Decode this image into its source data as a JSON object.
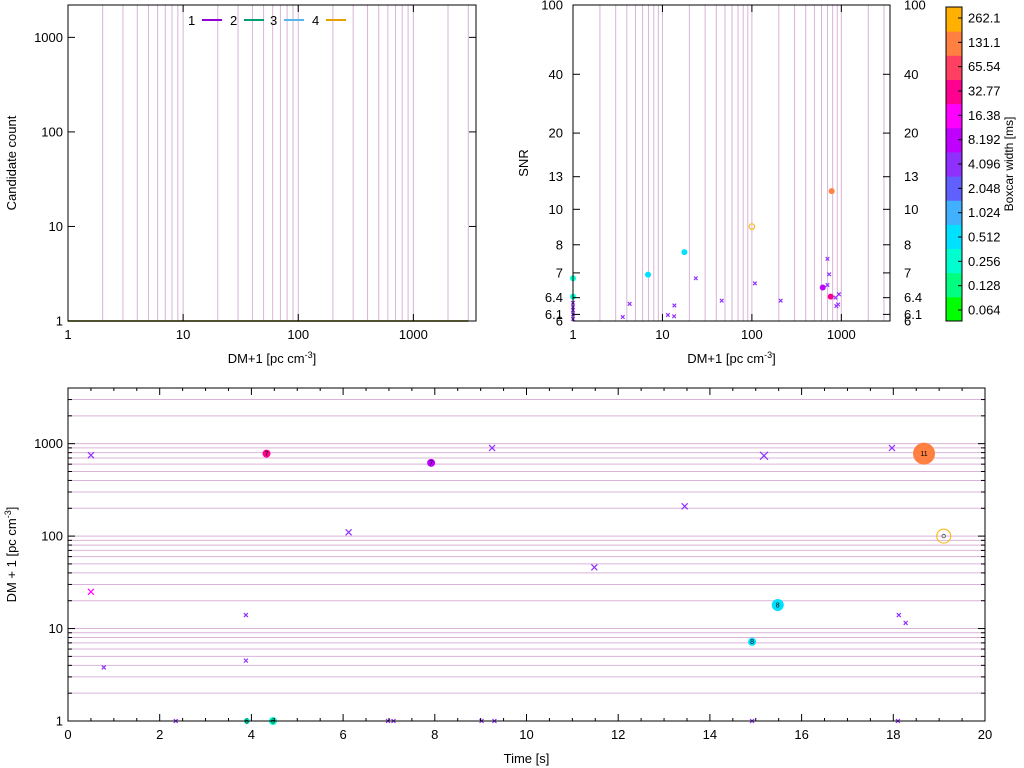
{
  "colors": {
    "grid": "#d9b3d9",
    "axis": "#000000",
    "series": [
      "#9400d3",
      "#009e73",
      "#56b4e9",
      "#e69f00"
    ],
    "colorbar_stops": [
      "#00ff00",
      "#00ff80",
      "#00ffd0",
      "#00e0ff",
      "#40b0ff",
      "#6060ff",
      "#9030ff",
      "#c000ff",
      "#ff00ff",
      "#ff0090",
      "#ff4060",
      "#ff8040",
      "#ffb000"
    ]
  },
  "chart_data": [
    {
      "id": "candidate-count",
      "type": "line",
      "xlabel": "DM+1 [pc cm",
      "xlabel_sup": "-3",
      "xlabel_tail": "]",
      "ylabel": "Candidate count",
      "xscale": "log",
      "yscale": "log",
      "xlim": [
        1,
        3500
      ],
      "ylim": [
        1,
        2200
      ],
      "xticks": [
        1,
        10,
        100,
        1000
      ],
      "xtick_labels": [
        "1",
        "10",
        "100",
        "1000"
      ],
      "yticks": [
        1,
        10,
        100,
        1000
      ],
      "ytick_labels": [
        "1",
        "10",
        "100",
        "1000"
      ],
      "legend_position": "top-center",
      "series": [
        {
          "name": "1",
          "x": [
            1,
            3000
          ],
          "y": [
            1,
            1
          ]
        },
        {
          "name": "2",
          "x": [
            1,
            3000
          ],
          "y": [
            1,
            1
          ]
        },
        {
          "name": "3",
          "x": [
            1,
            3000
          ],
          "y": [
            1,
            1
          ]
        },
        {
          "name": "4",
          "x": [
            1,
            3000
          ],
          "y": [
            1,
            1
          ]
        }
      ]
    },
    {
      "id": "snr-vs-dm",
      "type": "scatter",
      "xlabel": "DM+1 [pc cm",
      "xlabel_sup": "-3",
      "xlabel_tail": "]",
      "ylabel": "SNR",
      "xscale": "log",
      "yscale": "custom",
      "xlim": [
        1,
        3500
      ],
      "ylim": [
        6,
        100
      ],
      "xticks": [
        1,
        10,
        100,
        1000
      ],
      "xtick_labels": [
        "1",
        "10",
        "100",
        "1000"
      ],
      "yticks": [
        6,
        6.1,
        6.4,
        7,
        8,
        10,
        13,
        20,
        40,
        100
      ],
      "ytick_labels": [
        "6",
        "6.1",
        "6.4",
        "7",
        "8",
        "10",
        "13",
        "20",
        "40",
        "100"
      ],
      "points": [
        {
          "x": 1,
          "snr": 6.85,
          "w": 0.35,
          "kind": "dot"
        },
        {
          "x": 1,
          "snr": 6.42,
          "w": 0.35,
          "kind": "dot"
        },
        {
          "x": 1,
          "snr": 6.3,
          "w": 4,
          "kind": "cross"
        },
        {
          "x": 1,
          "snr": 6.22,
          "w": 4,
          "kind": "cross"
        },
        {
          "x": 1,
          "snr": 6.17,
          "w": 4,
          "kind": "cross"
        },
        {
          "x": 1,
          "snr": 6.1,
          "w": 4,
          "kind": "cross"
        },
        {
          "x": 1,
          "snr": 6.03,
          "w": 4,
          "kind": "cross"
        },
        {
          "x": 3.6,
          "snr": 6.06,
          "w": 4,
          "kind": "cross"
        },
        {
          "x": 4.3,
          "snr": 6.28,
          "w": 4,
          "kind": "cross"
        },
        {
          "x": 6.9,
          "snr": 6.95,
          "w": 0.4,
          "kind": "dot"
        },
        {
          "x": 11.5,
          "snr": 6.09,
          "w": 4,
          "kind": "cross"
        },
        {
          "x": 13.5,
          "snr": 6.07,
          "w": 4,
          "kind": "cross"
        },
        {
          "x": 13.6,
          "snr": 6.25,
          "w": 4,
          "kind": "cross"
        },
        {
          "x": 17.6,
          "snr": 7.7,
          "w": 0.4,
          "kind": "dot"
        },
        {
          "x": 23.6,
          "snr": 6.85,
          "w": 4,
          "kind": "cross"
        },
        {
          "x": 46,
          "snr": 6.34,
          "w": 4,
          "kind": "cross"
        },
        {
          "x": 100,
          "snr": 8.9,
          "w": 262,
          "kind": "ring"
        },
        {
          "x": 108,
          "snr": 6.72,
          "w": 4,
          "kind": "cross"
        },
        {
          "x": 210,
          "snr": 6.34,
          "w": 4,
          "kind": "cross"
        },
        {
          "x": 620,
          "snr": 6.62,
          "w": 8,
          "kind": "dot"
        },
        {
          "x": 700,
          "snr": 6.68,
          "w": 4,
          "kind": "cross"
        },
        {
          "x": 700,
          "snr": 7.45,
          "w": 4,
          "kind": "cross"
        },
        {
          "x": 730,
          "snr": 6.96,
          "w": 4,
          "kind": "cross"
        },
        {
          "x": 760,
          "snr": 6.42,
          "w": 32,
          "kind": "dot"
        },
        {
          "x": 780,
          "snr": 11.5,
          "w": 131,
          "kind": "dot"
        },
        {
          "x": 860,
          "snr": 6.4,
          "w": 4,
          "kind": "cross"
        },
        {
          "x": 880,
          "snr": 6.24,
          "w": 4,
          "kind": "cross"
        },
        {
          "x": 920,
          "snr": 6.27,
          "w": 4,
          "kind": "cross"
        },
        {
          "x": 940,
          "snr": 6.47,
          "w": 4,
          "kind": "cross"
        }
      ],
      "colorbar": {
        "label": "Boxcar width [ms]",
        "tick_labels": [
          "0.064",
          "0.128",
          "0.256",
          "0.512",
          "1.024",
          "2.048",
          "4.096",
          "8.192",
          "16.38",
          "32.77",
          "65.54",
          "131.1",
          "262.1"
        ]
      }
    },
    {
      "id": "dm-vs-time",
      "type": "scatter",
      "xlabel": "Time [s]",
      "ylabel": "DM + 1 [pc cm",
      "ylabel_sup": "-3",
      "ylabel_tail": "]",
      "xscale": "linear",
      "yscale": "log",
      "xlim": [
        0,
        20
      ],
      "ylim": [
        1,
        4000
      ],
      "xticks": [
        0,
        2,
        4,
        6,
        8,
        10,
        12,
        14,
        16,
        18,
        20
      ],
      "xtick_labels": [
        "0",
        "2",
        "4",
        "6",
        "8",
        "10",
        "12",
        "14",
        "16",
        "18",
        "20"
      ],
      "yticks": [
        1,
        10,
        100,
        1000
      ],
      "ytick_labels": [
        "1",
        "10",
        "100",
        "1000"
      ],
      "points": [
        {
          "t": 0.5,
          "dm": 750,
          "w": 4,
          "kind": "cross",
          "size": 3
        },
        {
          "t": 0.5,
          "dm": 25,
          "w": 16,
          "kind": "cross",
          "size": 3
        },
        {
          "t": 0.78,
          "dm": 3.8,
          "w": 4,
          "kind": "cross",
          "size": 2
        },
        {
          "t": 2.35,
          "dm": 1,
          "w": 4,
          "kind": "cross",
          "size": 2
        },
        {
          "t": 3.88,
          "dm": 14,
          "w": 4,
          "kind": "cross",
          "size": 2
        },
        {
          "t": 3.88,
          "dm": 4.5,
          "w": 4,
          "kind": "cross",
          "size": 2
        },
        {
          "t": 3.9,
          "dm": 1,
          "w": 0.35,
          "kind": "dot",
          "size": 3,
          "label": "6"
        },
        {
          "t": 4.33,
          "dm": 780,
          "w": 32,
          "kind": "dot",
          "size": 4,
          "label": "7"
        },
        {
          "t": 4.47,
          "dm": 1,
          "w": 0.35,
          "kind": "dot",
          "size": 4,
          "label": "6"
        },
        {
          "t": 6.12,
          "dm": 110,
          "w": 4,
          "kind": "cross",
          "size": 3
        },
        {
          "t": 6.98,
          "dm": 1,
          "w": 4,
          "kind": "cross",
          "size": 2
        },
        {
          "t": 7.1,
          "dm": 1,
          "w": 4,
          "kind": "cross",
          "size": 2
        },
        {
          "t": 7.92,
          "dm": 620,
          "w": 8,
          "kind": "dot",
          "size": 4,
          "label": "7"
        },
        {
          "t": 9.02,
          "dm": 1,
          "w": 4,
          "kind": "cross",
          "size": 2
        },
        {
          "t": 9.25,
          "dm": 900,
          "w": 4,
          "kind": "cross",
          "size": 3
        },
        {
          "t": 9.3,
          "dm": 1,
          "w": 4,
          "kind": "cross",
          "size": 2
        },
        {
          "t": 11.48,
          "dm": 46,
          "w": 4,
          "kind": "cross",
          "size": 3
        },
        {
          "t": 13.45,
          "dm": 210,
          "w": 4,
          "kind": "cross",
          "size": 3
        },
        {
          "t": 14.92,
          "dm": 7.2,
          "w": 0.5,
          "kind": "dot",
          "size": 4,
          "label": "8"
        },
        {
          "t": 14.92,
          "dm": 1,
          "w": 4,
          "kind": "cross",
          "size": 2
        },
        {
          "t": 15.48,
          "dm": 18,
          "w": 0.5,
          "kind": "dot",
          "size": 6,
          "label": "8"
        },
        {
          "t": 15.18,
          "dm": 740,
          "w": 4,
          "kind": "cross",
          "size": 4
        },
        {
          "t": 17.97,
          "dm": 900,
          "w": 4,
          "kind": "cross",
          "size": 3
        },
        {
          "t": 18.12,
          "dm": 14,
          "w": 4,
          "kind": "cross",
          "size": 2
        },
        {
          "t": 18.27,
          "dm": 11.5,
          "w": 4,
          "kind": "cross",
          "size": 2
        },
        {
          "t": 18.1,
          "dm": 1,
          "w": 4,
          "kind": "cross",
          "size": 2
        },
        {
          "t": 18.67,
          "dm": 780,
          "w": 131,
          "kind": "dot",
          "size": 11,
          "label": "11"
        },
        {
          "t": 19.1,
          "dm": 100,
          "w": 262,
          "kind": "ring",
          "size": 7,
          "label": "8"
        }
      ]
    }
  ]
}
